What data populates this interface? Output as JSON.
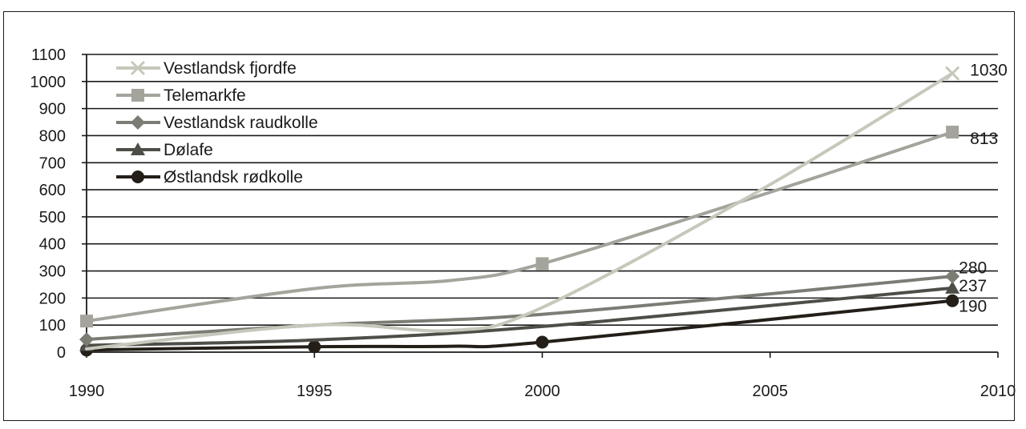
{
  "chart_data": {
    "type": "line",
    "x_ticks": [
      "1990",
      "1995",
      "2000",
      "2005",
      "2010"
    ],
    "y_ticks": [
      "0",
      "100",
      "200",
      "300",
      "400",
      "500",
      "600",
      "700",
      "800",
      "900",
      "1000",
      "1100"
    ],
    "xlim": [
      1990,
      2010
    ],
    "ylim": [
      0,
      1100
    ],
    "grid": "horizontal",
    "legend": "top-left",
    "series": [
      {
        "name": "Vestlandsk fjordfe",
        "color": "#c7c8bb",
        "marker": "x",
        "end_label": "1030",
        "points": [
          [
            1990,
            12
          ],
          [
            1995,
            100
          ],
          [
            1998,
            80
          ],
          [
            2000,
            165
          ],
          [
            2004.8,
            600
          ],
          [
            2009,
            1030
          ]
        ],
        "marked": [
          [
            2009,
            1030
          ]
        ]
      },
      {
        "name": "Telemarkfe",
        "color": "#a4a49c",
        "marker": "square",
        "end_label": "813",
        "points": [
          [
            1990,
            115
          ],
          [
            1995,
            235
          ],
          [
            1998,
            265
          ],
          [
            2000,
            327
          ],
          [
            2004.8,
            580
          ],
          [
            2009,
            813
          ]
        ],
        "marked": [
          [
            1990,
            115
          ],
          [
            2000,
            327
          ],
          [
            2009,
            813
          ]
        ]
      },
      {
        "name": "Vestlandsk raudkolle",
        "color": "#7b7c74",
        "marker": "diamond",
        "end_label": "280",
        "points": [
          [
            1990,
            47
          ],
          [
            1995,
            100
          ],
          [
            2000,
            140
          ],
          [
            2009,
            280
          ]
        ],
        "marked": [
          [
            1990,
            47
          ],
          [
            2009,
            280
          ]
        ]
      },
      {
        "name": "Dølafe",
        "color": "#4e4e48",
        "marker": "triangle",
        "end_label": "237",
        "points": [
          [
            1990,
            25
          ],
          [
            1995,
            45
          ],
          [
            2000,
            95
          ],
          [
            2009,
            237
          ]
        ],
        "marked": [
          [
            1990,
            25
          ],
          [
            2009,
            237
          ]
        ]
      },
      {
        "name": "Østlandsk rødkolle",
        "color": "#231f18",
        "marker": "circle",
        "end_label": "190",
        "points": [
          [
            1990,
            8
          ],
          [
            1995,
            20
          ],
          [
            1998,
            22
          ],
          [
            2000,
            37
          ],
          [
            2009,
            190
          ]
        ],
        "marked": [
          [
            1990,
            8
          ],
          [
            1995,
            20
          ],
          [
            2000,
            37
          ],
          [
            2009,
            190
          ]
        ]
      }
    ]
  }
}
